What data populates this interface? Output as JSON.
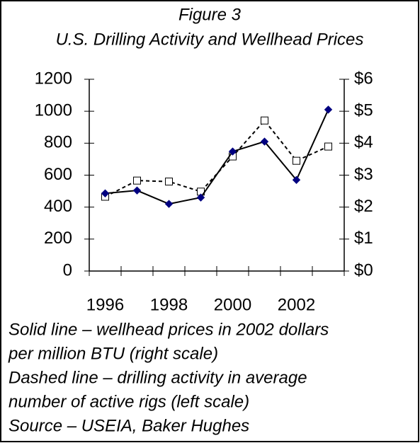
{
  "chart_data": {
    "type": "line",
    "title": "Figure 3",
    "subtitle": "U.S. Drilling Activity and Wellhead Prices",
    "categories": [
      "1996",
      null,
      "1998",
      null,
      "2000",
      null,
      "2002",
      null
    ],
    "series": [
      {
        "name": "Drilling activity",
        "color": "#000000",
        "marker": "square",
        "dash": true,
        "axis": "y",
        "values": [
          465,
          566,
          560,
          497,
          717,
          942,
          690,
          779
        ]
      },
      {
        "name": "Wellhead prices",
        "color": "#000000",
        "marker_color": "#000080",
        "marker": "diamond",
        "dash": false,
        "axis": "y2",
        "values": [
          2.43,
          2.52,
          2.1,
          2.3,
          3.74,
          4.05,
          2.85,
          5.05
        ]
      }
    ],
    "ylim": [
      0,
      1200
    ],
    "yticks": [
      0,
      200,
      400,
      600,
      800,
      1000,
      1200
    ],
    "y2lim": [
      0,
      6
    ],
    "y2ticks": [
      {
        "value": 0,
        "label": "$0"
      },
      {
        "value": 1,
        "label": "$1"
      },
      {
        "value": 2,
        "label": "$2"
      },
      {
        "value": 3,
        "label": "$3"
      },
      {
        "value": 4,
        "label": "$4"
      },
      {
        "value": 5,
        "label": "$5"
      },
      {
        "value": 6,
        "label": "$6"
      }
    ],
    "notes": [
      "Solid line – wellhead prices in 2002 dollars",
      "per million BTU (right scale)",
      "Dashed line – drilling activity in average",
      "number of active rigs (left scale)",
      "Source – USEIA, Baker Hughes"
    ]
  }
}
